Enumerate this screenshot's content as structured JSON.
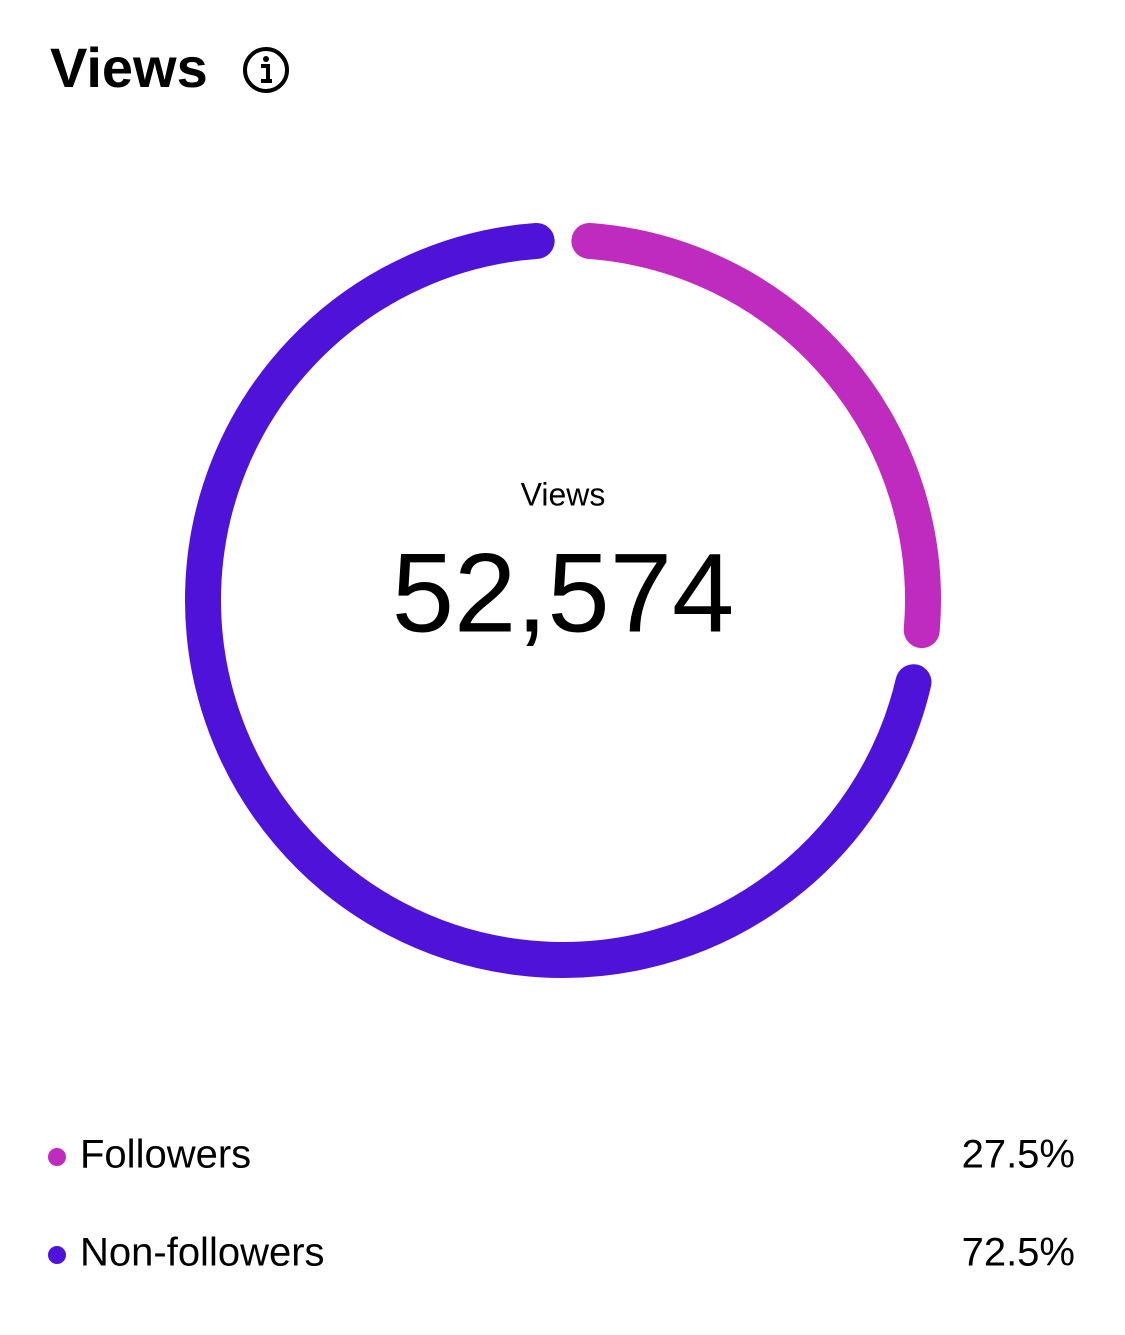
{
  "chart_data": {
    "type": "donut",
    "title": "Views",
    "center_label": "Views",
    "center_value": "52,574",
    "series": [
      {
        "name": "Followers",
        "color": "#bf2bbf",
        "values": [
          27.5
        ],
        "value_labels": [
          "27.5%"
        ]
      },
      {
        "name": "Non-followers",
        "color": "#4f12d9",
        "values": [
          72.5
        ],
        "value_labels": [
          "72.5%"
        ]
      }
    ]
  }
}
